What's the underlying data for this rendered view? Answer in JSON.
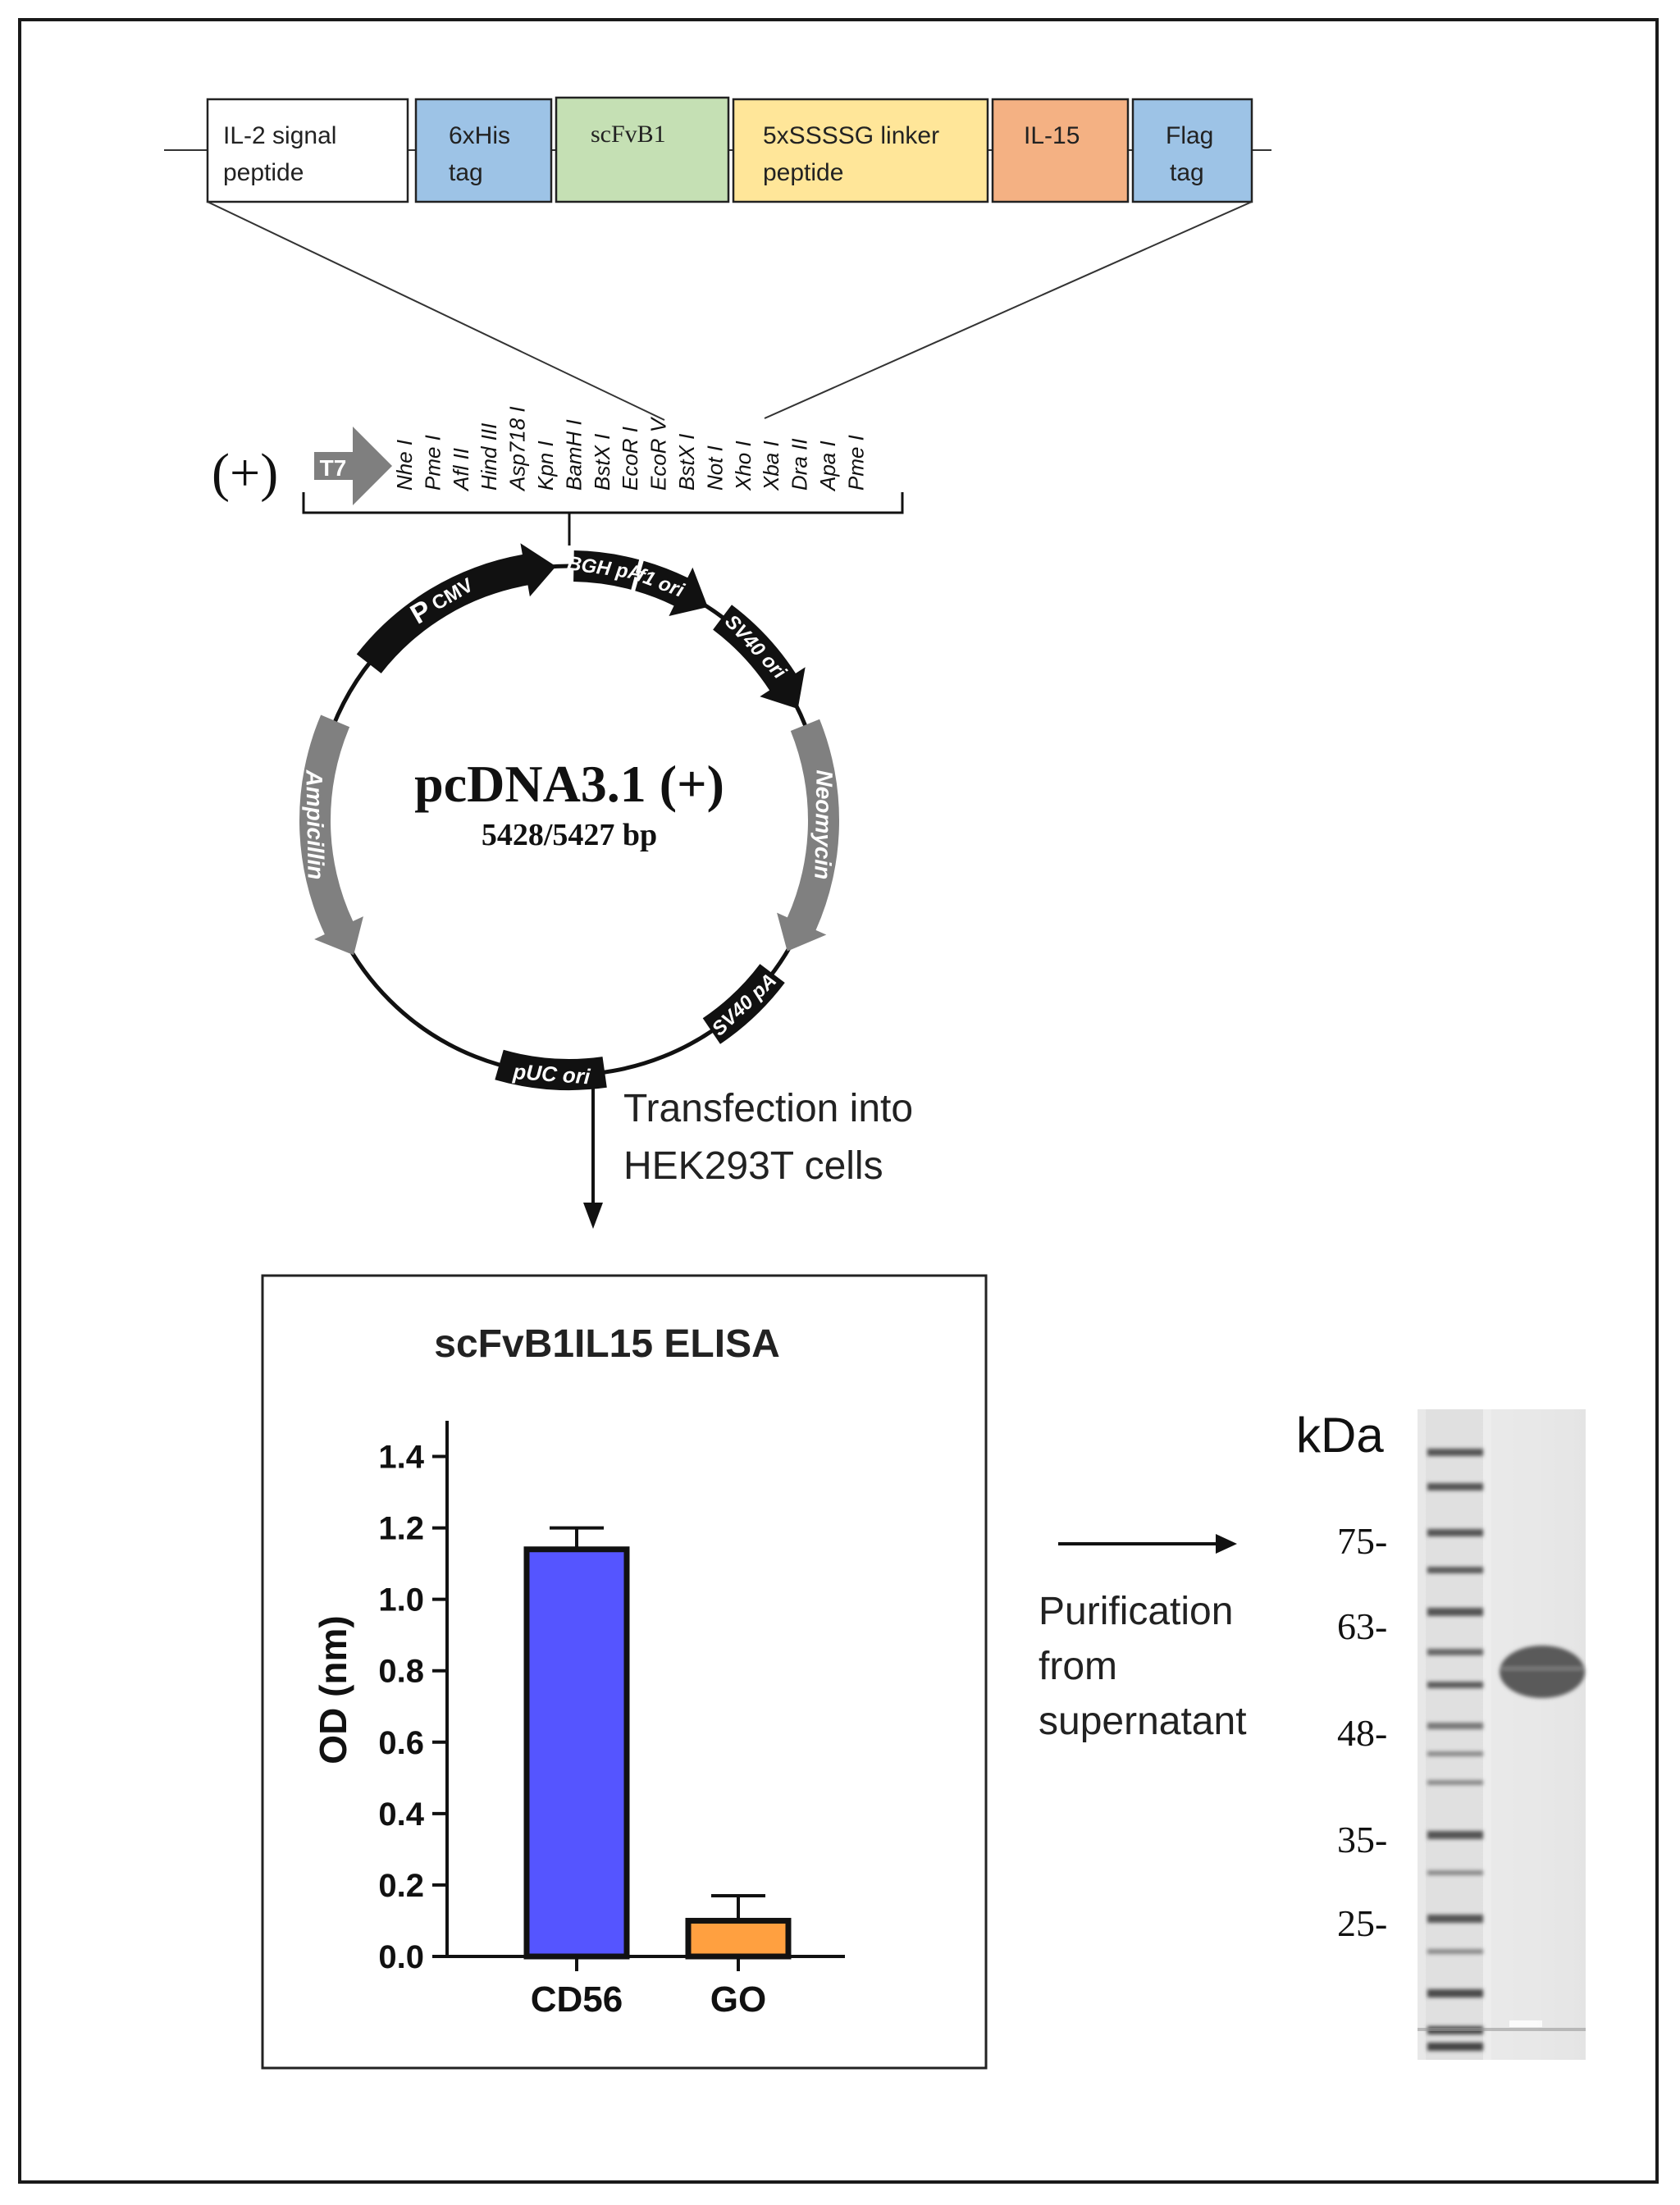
{
  "construct": {
    "segments": [
      {
        "line1": "IL-2 signal",
        "line2": "peptide",
        "color": "#ffffff"
      },
      {
        "line1": "6xHis",
        "line2": "tag",
        "color": "#9dc3e6"
      },
      {
        "line1": "scFvB1",
        "line2": "",
        "color": "#c5e0b4"
      },
      {
        "line1": "5xSSSSG linker",
        "line2": "peptide",
        "color": "#ffe699"
      },
      {
        "line1": "IL-15",
        "line2": "",
        "color": "#f4b183"
      },
      {
        "line1": "Flag",
        "line2": "tag",
        "color": "#9dc3e6"
      }
    ]
  },
  "mcs": {
    "orientation": "(+)",
    "promoter": "T7",
    "sites": [
      "Nhe I",
      "Pme I",
      "Afl II",
      "Hind III",
      "Asp718 I",
      "Kpn I",
      "BamH I",
      "BstX I",
      "EcoR I",
      "EcoR V",
      "BstX I",
      "Not I",
      "Xho I",
      "Xba I",
      "Dra II",
      "Apa I",
      "Pme I"
    ]
  },
  "plasmid": {
    "name": "pcDNA3.1 (+)",
    "size": "5428/5427 bp",
    "features": {
      "pcmv_main": "P",
      "pcmv_sub": "CMV",
      "bgh": "BGH pA",
      "f1": "f1 ori",
      "sv40ori": "SV40 ori",
      "neomycin": "Neomycin",
      "sv40pa": "SV40 pA",
      "puc": "pUC ori",
      "ampicillin": "Ampicillin"
    }
  },
  "transfection": {
    "line1": "Transfection into",
    "line2": "HEK293T cells"
  },
  "purification": {
    "line1": "Purification",
    "line2": "from",
    "line3": "supernatant"
  },
  "gel": {
    "unit": "kDa",
    "markers": [
      "75-",
      "63-",
      "48-",
      "35-",
      "25-"
    ]
  },
  "colors": {
    "cd56": "#5555ff",
    "go": "#ffa040"
  },
  "chart_data": {
    "type": "bar",
    "title": "scFvB1IL15 ELISA",
    "xlabel": "",
    "ylabel": "OD (nm)",
    "categories": [
      "CD56",
      "GO"
    ],
    "values": [
      1.14,
      0.1
    ],
    "errors": [
      0.06,
      0.07
    ],
    "ylim": [
      0,
      1.5
    ],
    "yticks": [
      "0.0",
      "0.2",
      "0.4",
      "0.6",
      "0.8",
      "1.0",
      "1.2",
      "1.4"
    ],
    "grid": false
  }
}
